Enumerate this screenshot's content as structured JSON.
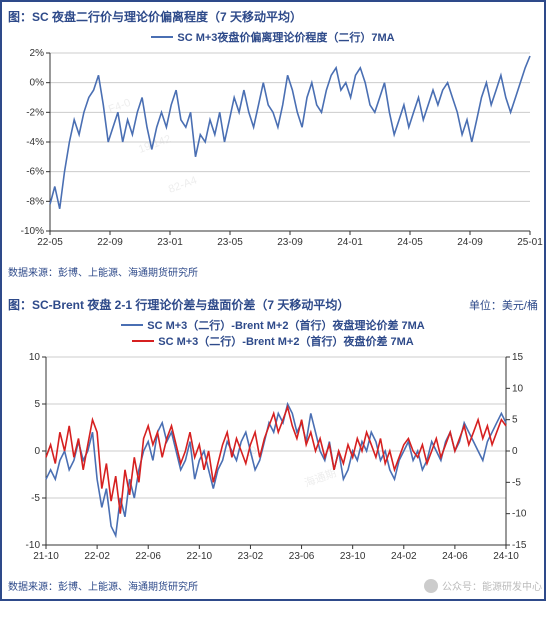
{
  "frame_border_color": "#2e4a8a",
  "chart1": {
    "type": "line",
    "title": "图：SC 夜盘二行价与理论价偏离程度（7 天移动平均）",
    "source": "数据来源：彭博、上能源、海通期货研究所",
    "legend": [
      {
        "label": "SC M+3夜盘价偏离理论价程度（二行）7MA",
        "color": "#4a6fb3"
      }
    ],
    "y": {
      "min": -10,
      "max": 2,
      "ticks": [
        -10,
        -8,
        -6,
        -4,
        -2,
        0,
        2
      ],
      "suffix": "%",
      "fontsize": 10
    },
    "x": {
      "labels": [
        "22-05",
        "22-09",
        "23-01",
        "23-05",
        "23-09",
        "24-01",
        "24-05",
        "24-09",
        "25-01"
      ],
      "fontsize": 10
    },
    "grid_color": "#cccccc",
    "background_color": "#ffffff",
    "series": [
      {
        "color": "#4a6fb3",
        "data": [
          -8.2,
          -7.0,
          -8.5,
          -6.0,
          -4.0,
          -2.5,
          -3.5,
          -2.0,
          -1.0,
          -0.5,
          0.5,
          -1.5,
          -4.0,
          -3.0,
          -2.0,
          -4.0,
          -2.5,
          -3.5,
          -2.0,
          -1.0,
          -3.0,
          -4.5,
          -3.0,
          -2.0,
          -3.0,
          -1.5,
          -0.5,
          -2.5,
          -3.0,
          -2.0,
          -5.0,
          -3.5,
          -4.0,
          -2.5,
          -3.5,
          -2.0,
          -4.0,
          -2.5,
          -1.0,
          -2.0,
          -0.5,
          -2.0,
          -3.0,
          -1.5,
          0.0,
          -1.5,
          -2.0,
          -3.0,
          -1.5,
          0.5,
          -0.5,
          -2.0,
          -3.0,
          -1.0,
          0.0,
          -1.5,
          -2.0,
          -0.5,
          0.5,
          1.0,
          -0.5,
          0.0,
          -1.0,
          0.5,
          1.0,
          0.0,
          -1.5,
          -2.0,
          -1.0,
          0.0,
          -2.0,
          -3.5,
          -2.5,
          -1.5,
          -3.0,
          -2.0,
          -1.0,
          -2.5,
          -1.5,
          -0.5,
          -1.5,
          -0.5,
          0.0,
          -1.0,
          -2.0,
          -3.5,
          -2.5,
          -4.0,
          -2.5,
          -1.0,
          0.0,
          -1.5,
          -0.5,
          0.5,
          -1.0,
          -2.0,
          -1.0,
          0.0,
          1.0,
          1.8
        ]
      }
    ],
    "watermarks": [
      "F4-0",
      "19.142",
      "82-A4"
    ]
  },
  "chart2": {
    "type": "line",
    "title": "图：SC-Brent 夜盘 2-1 行理论价差与盘面价差（7 天移动平均）",
    "unit": "单位：美元/桶",
    "source": "数据来源：彭博、上能源、海通期货研究所",
    "legend": [
      {
        "label": "SC M+3（二行）-Brent M+2（首行）夜盘理论价差 7MA",
        "color": "#4a6fb3"
      },
      {
        "label": "SC M+3（二行）-Brent M+2（首行）夜盘价差 7MA",
        "color": "#d62020"
      }
    ],
    "yLeft": {
      "min": -10,
      "max": 10,
      "ticks": [
        -10,
        -5,
        0,
        5,
        10
      ],
      "fontsize": 10
    },
    "yRight": {
      "min": -15,
      "max": 15,
      "ticks": [
        -15,
        -10,
        -5,
        0,
        5,
        10,
        15
      ],
      "fontsize": 10
    },
    "x": {
      "labels": [
        "21-10",
        "22-02",
        "22-06",
        "22-10",
        "23-02",
        "23-06",
        "23-10",
        "24-02",
        "24-06",
        "24-10"
      ],
      "fontsize": 10
    },
    "grid_color": "#cccccc",
    "background_color": "#ffffff",
    "series": [
      {
        "axis": "left",
        "color": "#4a6fb3",
        "data": [
          -3,
          -2,
          -3,
          -1,
          0,
          -2,
          -1,
          1,
          -1,
          0,
          2,
          -3,
          -6,
          -4,
          -8,
          -9,
          -5,
          -7,
          -3,
          -5,
          -2,
          0,
          1,
          -1,
          2,
          3,
          1,
          2,
          0,
          -2,
          -1,
          1,
          -3,
          -1,
          0,
          -2,
          -4,
          -2,
          -1,
          1,
          0,
          -1,
          1,
          2,
          0,
          -2,
          -1,
          1,
          3,
          2,
          4,
          3,
          5,
          4,
          2,
          3,
          1,
          4,
          2,
          0,
          -1,
          1,
          -2,
          0,
          -3,
          -2,
          0,
          -1,
          1,
          0,
          2,
          1,
          -1,
          0,
          -2,
          -3,
          -1,
          0,
          1,
          -1,
          0,
          -2,
          -1,
          1,
          0,
          -1,
          1,
          2,
          0,
          1,
          3,
          2,
          1,
          0,
          -1,
          1,
          2,
          3,
          4,
          3
        ]
      },
      {
        "axis": "right",
        "color": "#d62020",
        "data": [
          -1,
          1,
          -2,
          3,
          0,
          4,
          -1,
          2,
          -3,
          1,
          5,
          3,
          -6,
          -2,
          -8,
          -4,
          -10,
          -3,
          -7,
          -1,
          -5,
          2,
          4,
          1,
          3,
          -1,
          2,
          4,
          1,
          -2,
          0,
          3,
          -1,
          1,
          -3,
          0,
          -5,
          -2,
          1,
          3,
          -1,
          2,
          0,
          -2,
          1,
          3,
          -1,
          2,
          4,
          6,
          3,
          5,
          7,
          4,
          2,
          5,
          1,
          3,
          0,
          2,
          -1,
          1,
          -3,
          0,
          -2,
          1,
          -1,
          2,
          0,
          3,
          1,
          -1,
          2,
          -2,
          0,
          -3,
          -1,
          1,
          2,
          0,
          -1,
          1,
          -2,
          0,
          2,
          -1,
          1,
          3,
          0,
          2,
          4,
          1,
          3,
          5,
          2,
          4,
          1,
          3,
          5,
          4
        ]
      }
    ],
    "watermarks": [
      "10",
      "海通期"
    ]
  },
  "footer_mark": "公众号：能源研发中心"
}
